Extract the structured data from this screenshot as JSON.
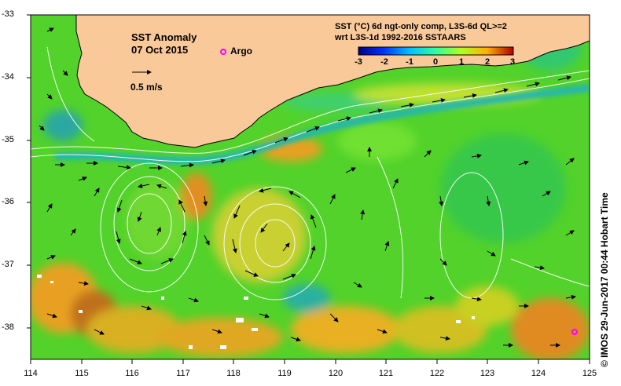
{
  "map": {
    "title": "SST Anomaly",
    "date": "07 Oct 2015",
    "scale_label": "0.5 m/s",
    "argo_label": "Argo",
    "product_line1": "SST (°C) 6d ngt-only comp, L3S-6d QL>=2",
    "product_line2": "wrt L3S-1d 1992-2016 SSTAARS",
    "credit": "© IMOS 29-Jun-2017 00:44 Hobart Time"
  },
  "axes": {
    "lat_labels": [
      "-33",
      "-34",
      "-35",
      "-36",
      "-37",
      "-38"
    ],
    "lon_labels": [
      "114",
      "115",
      "116",
      "117",
      "118",
      "119",
      "120",
      "121",
      "122",
      "123",
      "124",
      "125"
    ]
  },
  "colorbar": {
    "labels": [
      "-3",
      "-2",
      "-1",
      "0",
      "1",
      "2",
      "3"
    ],
    "colors": [
      "#00007f",
      "#0030ff",
      "#00c0ff",
      "#30ffa0",
      "#b0ff20",
      "#ffd000",
      "#ff6000",
      "#a00000"
    ]
  },
  "colors": {
    "land": "#f9c99a",
    "sea_base": "#52d22a",
    "argo_marker": "#ff00ff"
  }
}
